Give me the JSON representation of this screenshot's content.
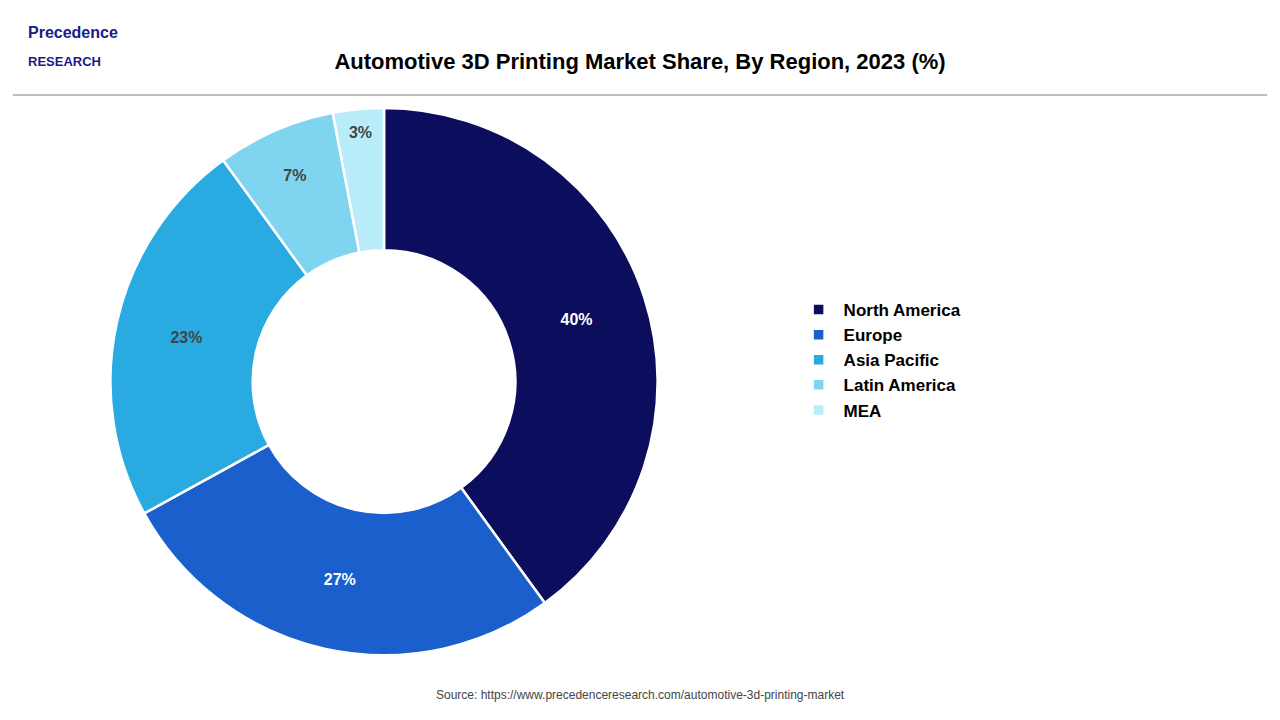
{
  "chart_data": {
    "type": "pie",
    "title": "Automotive 3D Printing Market Share, By Region, 2023 (%)",
    "categories": [
      "North America",
      "Europe",
      "Asia Pacific",
      "Latin America",
      "MEA"
    ],
    "values": [
      40,
      27,
      23,
      7,
      3
    ],
    "value_labels": [
      "40%",
      "27%",
      "23%",
      "7%",
      "3%"
    ],
    "colors": [
      "#0d0d5e",
      "#1a5fcc",
      "#29abe2",
      "#7fd4f0",
      "#b8ecf8"
    ],
    "data_labels": true,
    "legend": "right",
    "annotations": [
      "Precedence",
      "RESEARCH",
      "Source: https://www.precedenceresearch.com/automotive-3d-printing-market"
    ]
  }
}
